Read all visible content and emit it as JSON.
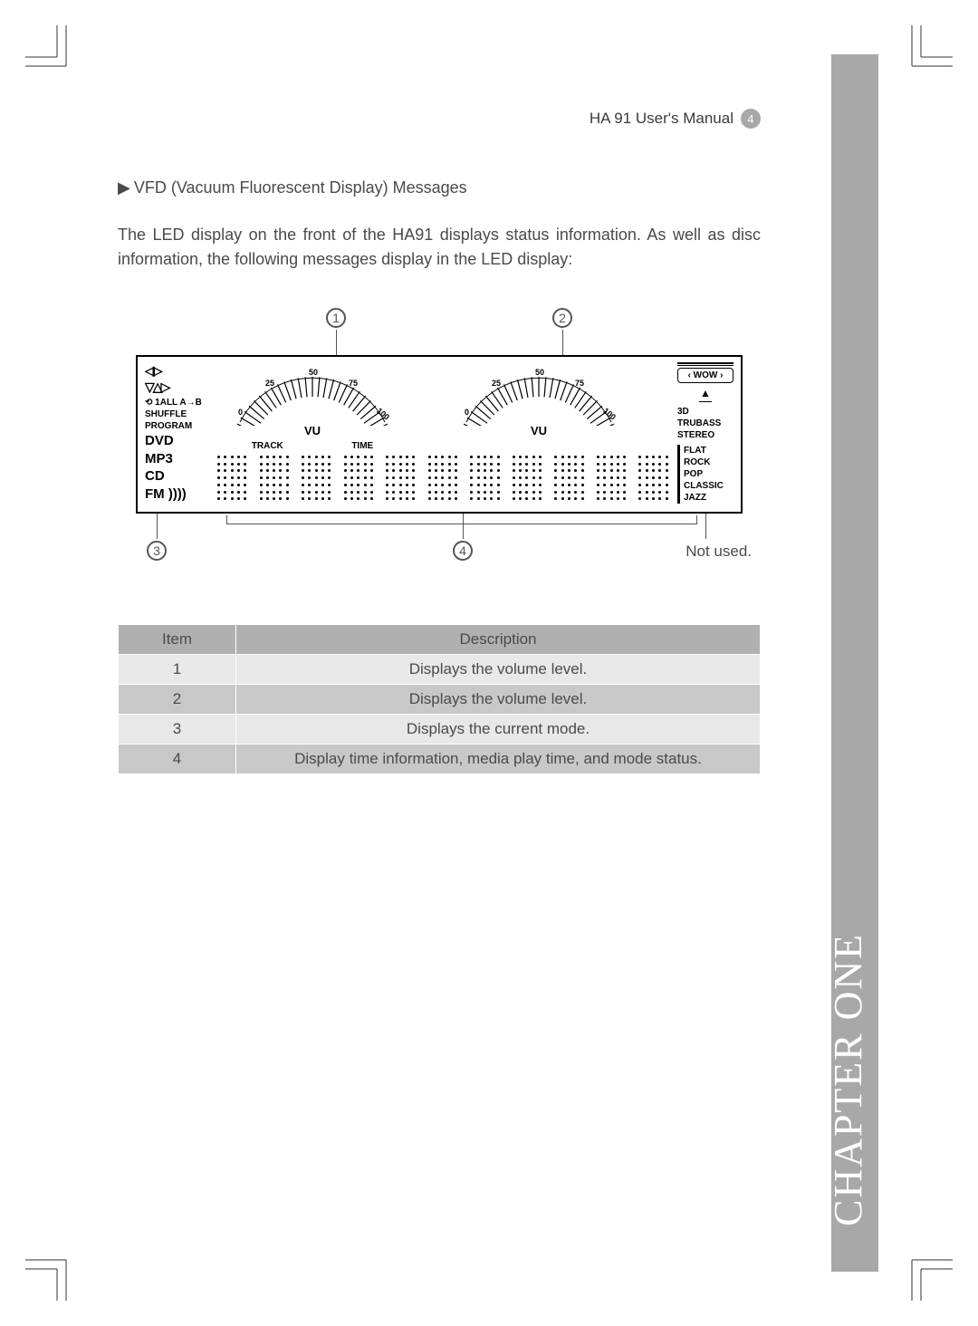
{
  "header": {
    "manual_title": "HA 91 User's Manual",
    "page_number": "4"
  },
  "section": {
    "title": "VFD (Vacuum Fluorescent Display) Messages",
    "body": "The LED display on the front of the HA91 displays status information. As well as disc information, the following messages display in the LED display:"
  },
  "diagram": {
    "callouts": [
      "1",
      "2",
      "3",
      "4"
    ],
    "not_used_label": "Not used.",
    "vu": {
      "scale": [
        "0",
        "25",
        "50",
        "75",
        "100"
      ],
      "label": "VU",
      "track_label": "TRACK",
      "time_label": "TIME"
    },
    "left_indicators": {
      "repeat": "⟲ 1ALL A→B",
      "shuffle": "SHUFFLE",
      "program": "PROGRAM",
      "dvd": "DVD",
      "mp3": "MP3",
      "cd": "CD",
      "fm": "FM ))))"
    },
    "right_indicators": {
      "wow": "‹ WOW ›",
      "sound3d": "3D",
      "trubass": "TRUBASS",
      "stereo": "STEREO",
      "flat": "FLAT",
      "rock": "ROCK",
      "pop": "POP",
      "classic": "CLASSIC",
      "jazz": "JAZZ"
    },
    "dot_matrix_cells": 11
  },
  "table": {
    "columns": [
      "Item",
      "Description"
    ],
    "rows": [
      [
        "1",
        "Displays the volume level."
      ],
      [
        "2",
        "Displays the volume level."
      ],
      [
        "3",
        "Displays the current mode."
      ],
      [
        "4",
        "Display time information, media play time, and mode status."
      ]
    ]
  },
  "sidebar": {
    "chapter": "CHAPTER ONE"
  },
  "colors": {
    "sidebar_bg": "#a8a8a8",
    "table_header_bg": "#b0b0b0",
    "table_row_odd": "#e8e8e8",
    "table_row_even": "#c8c8c8",
    "text": "#4a4a4a"
  }
}
